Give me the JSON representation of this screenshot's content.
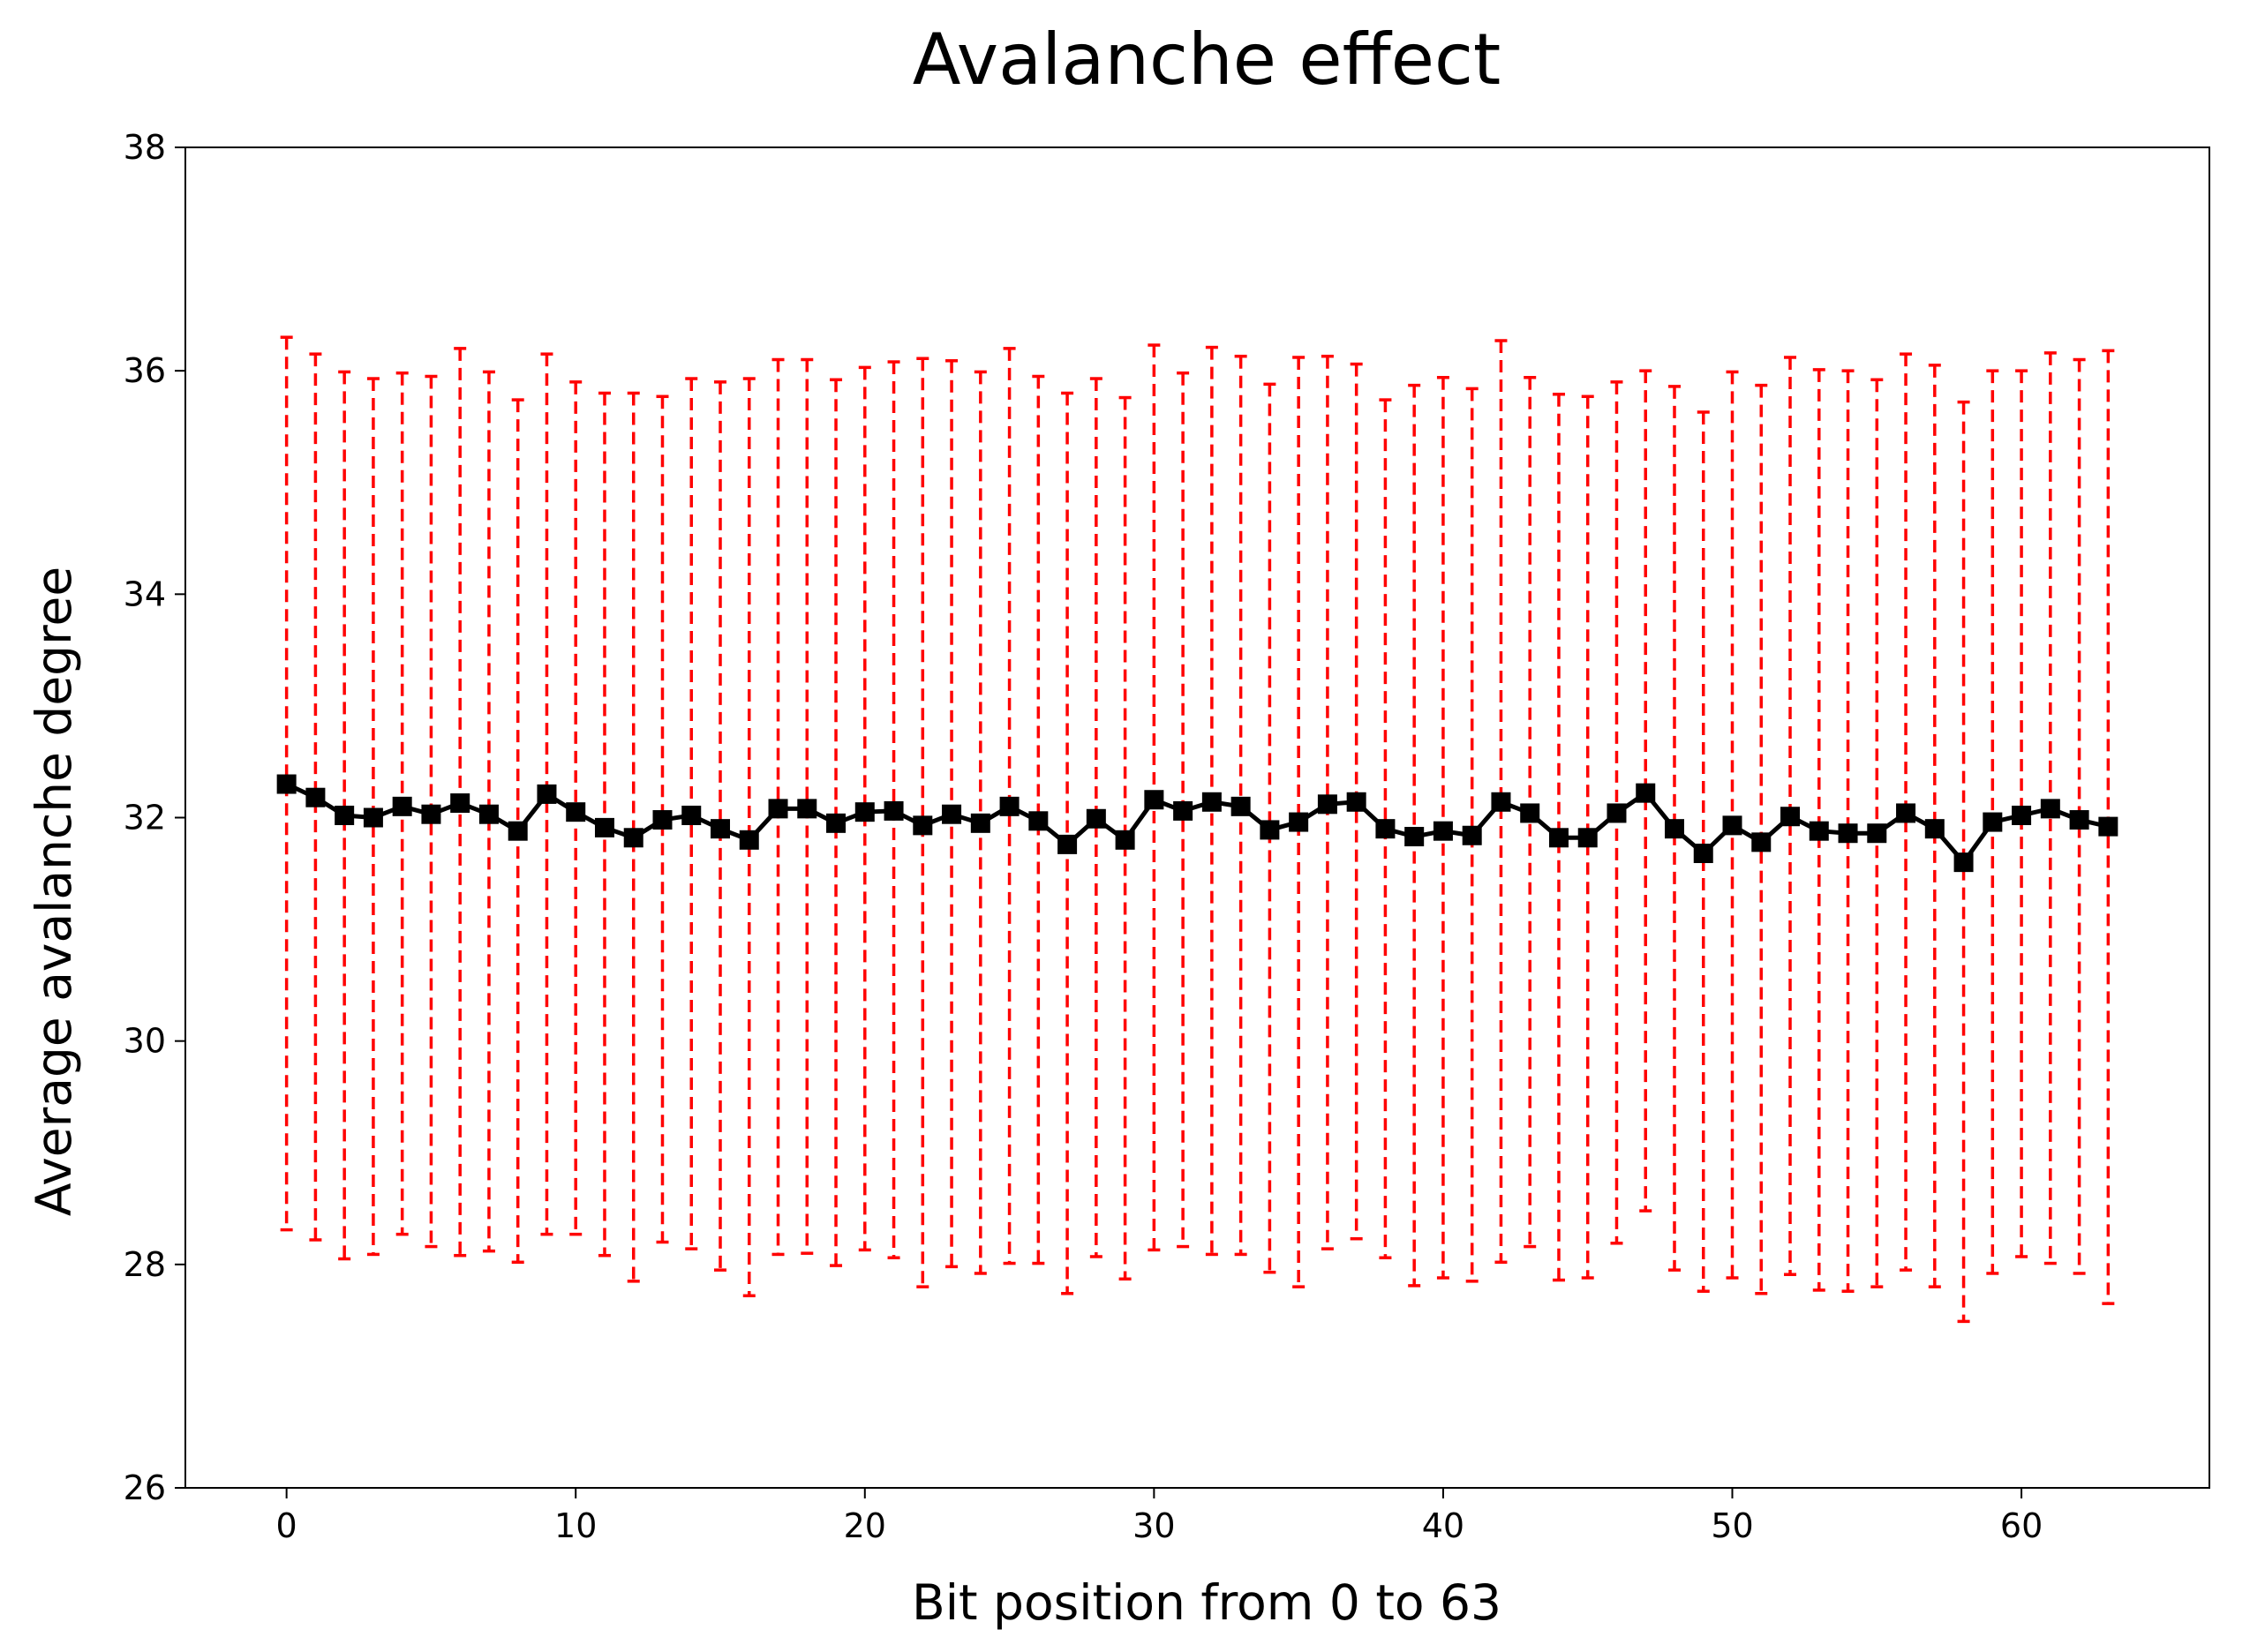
{
  "chart_data": {
    "type": "line",
    "title": "Avalanche effect",
    "xlabel": "Bit position from 0 to 63",
    "ylabel": "Average avalanche degree",
    "xlim": [
      -3.5,
      66.5
    ],
    "ylim": [
      26,
      38
    ],
    "xticks": [
      0,
      10,
      20,
      30,
      40,
      50,
      60
    ],
    "yticks": [
      26,
      28,
      30,
      32,
      34,
      36,
      38
    ],
    "grid": false,
    "colors": {
      "line": "#000000",
      "marker": "#000000",
      "errorbar": "#ff0000"
    },
    "series": [
      {
        "name": "Average avalanche degree",
        "x": [
          0,
          1,
          2,
          3,
          4,
          5,
          6,
          7,
          8,
          9,
          10,
          11,
          12,
          13,
          14,
          15,
          16,
          17,
          18,
          19,
          20,
          21,
          22,
          23,
          24,
          25,
          26,
          27,
          28,
          29,
          30,
          31,
          32,
          33,
          34,
          35,
          36,
          37,
          38,
          39,
          40,
          41,
          42,
          43,
          44,
          45,
          46,
          47,
          48,
          49,
          50,
          51,
          52,
          53,
          54,
          55,
          56,
          57,
          58,
          59,
          60,
          61,
          62,
          63
        ],
        "y": [
          32.3,
          32.18,
          32.02,
          32.0,
          32.1,
          32.03,
          32.13,
          32.03,
          31.88,
          32.21,
          32.05,
          31.91,
          31.82,
          31.98,
          32.02,
          31.9,
          31.8,
          32.08,
          32.08,
          31.95,
          32.05,
          32.06,
          31.93,
          32.03,
          31.95,
          32.1,
          31.97,
          31.76,
          31.99,
          31.8,
          32.16,
          32.06,
          32.14,
          32.1,
          31.89,
          31.96,
          32.12,
          32.14,
          31.9,
          31.83,
          31.88,
          31.84,
          32.14,
          32.04,
          31.82,
          31.82,
          32.04,
          32.22,
          31.9,
          31.68,
          31.93,
          31.78,
          32.01,
          31.88,
          31.86,
          31.86,
          32.04,
          31.9,
          31.6,
          31.96,
          32.02,
          32.08,
          31.98,
          31.92
        ],
        "err_upper": [
          36.3,
          36.15,
          35.99,
          35.93,
          35.98,
          35.95,
          36.2,
          35.99,
          35.74,
          36.15,
          35.9,
          35.8,
          35.8,
          35.77,
          35.93,
          35.9,
          35.93,
          36.1,
          36.1,
          35.92,
          36.03,
          36.08,
          36.11,
          36.09,
          35.99,
          36.2,
          35.95,
          35.8,
          35.93,
          35.76,
          36.23,
          35.98,
          36.21,
          36.13,
          35.88,
          36.12,
          36.13,
          36.06,
          35.74,
          35.87,
          35.94,
          35.84,
          36.27,
          35.94,
          35.79,
          35.77,
          35.9,
          36.0,
          35.86,
          35.63,
          35.99,
          35.87,
          36.12,
          36.01,
          36.0,
          35.92,
          36.15,
          36.05,
          35.72,
          36.0,
          36.0,
          36.16,
          36.1,
          36.18
        ],
        "err_lower": [
          28.31,
          28.22,
          28.05,
          28.09,
          28.27,
          28.16,
          28.08,
          28.12,
          28.02,
          28.27,
          28.27,
          28.08,
          27.85,
          28.2,
          28.14,
          27.95,
          27.72,
          28.09,
          28.1,
          27.99,
          28.13,
          28.06,
          27.8,
          27.98,
          27.92,
          28.01,
          28.01,
          27.74,
          28.07,
          27.87,
          28.13,
          28.16,
          28.09,
          28.09,
          27.93,
          27.8,
          28.14,
          28.23,
          28.06,
          27.81,
          27.88,
          27.85,
          28.02,
          28.16,
          27.86,
          27.88,
          28.19,
          28.48,
          27.95,
          27.76,
          27.88,
          27.74,
          27.91,
          27.77,
          27.76,
          27.8,
          27.95,
          27.8,
          27.49,
          27.92,
          28.07,
          28.01,
          27.92,
          27.65
        ]
      }
    ]
  }
}
